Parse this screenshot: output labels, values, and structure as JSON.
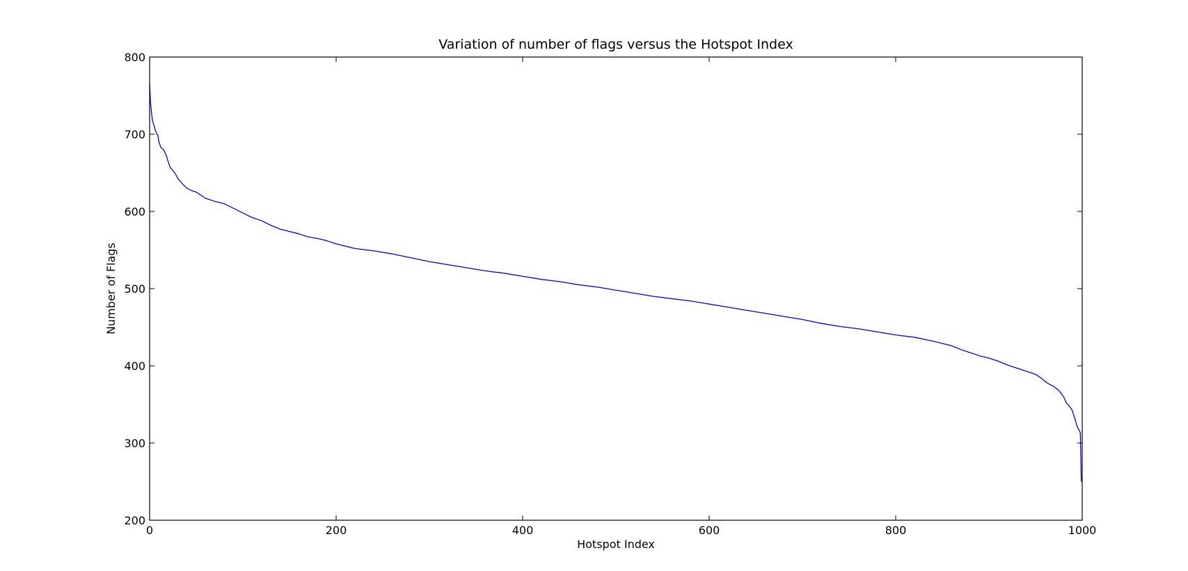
{
  "chart_data": {
    "type": "line",
    "title": "Variation of number of flags versus the Hotspot Index",
    "xlabel": "Hotspot Index",
    "ylabel": "Number of Flags",
    "xlim": [
      0,
      1000
    ],
    "ylim": [
      200,
      800
    ],
    "x_ticks": [
      0,
      200,
      400,
      600,
      800,
      1000
    ],
    "y_ticks": [
      200,
      300,
      400,
      500,
      600,
      700,
      800
    ],
    "grid": false,
    "series": [
      {
        "color": "#0000ff",
        "points": [
          [
            0,
            765
          ],
          [
            1,
            740
          ],
          [
            2,
            728
          ],
          [
            3,
            718
          ],
          [
            5,
            710
          ],
          [
            7,
            702
          ],
          [
            9,
            698
          ],
          [
            10,
            690
          ],
          [
            12,
            683
          ],
          [
            15,
            680
          ],
          [
            18,
            672
          ],
          [
            20,
            664
          ],
          [
            22,
            657
          ],
          [
            25,
            653
          ],
          [
            28,
            648
          ],
          [
            30,
            643
          ],
          [
            35,
            636
          ],
          [
            40,
            630
          ],
          [
            45,
            627
          ],
          [
            50,
            625
          ],
          [
            55,
            621
          ],
          [
            60,
            617
          ],
          [
            70,
            613
          ],
          [
            80,
            610
          ],
          [
            90,
            604
          ],
          [
            100,
            598
          ],
          [
            110,
            592
          ],
          [
            120,
            588
          ],
          [
            130,
            582
          ],
          [
            140,
            577
          ],
          [
            150,
            574
          ],
          [
            160,
            571
          ],
          [
            170,
            567
          ],
          [
            180,
            565
          ],
          [
            190,
            562
          ],
          [
            200,
            558
          ],
          [
            220,
            552
          ],
          [
            240,
            549
          ],
          [
            260,
            545
          ],
          [
            280,
            540
          ],
          [
            300,
            535
          ],
          [
            320,
            531
          ],
          [
            340,
            527
          ],
          [
            360,
            523
          ],
          [
            380,
            520
          ],
          [
            400,
            516
          ],
          [
            420,
            512
          ],
          [
            440,
            509
          ],
          [
            460,
            505
          ],
          [
            480,
            502
          ],
          [
            500,
            498
          ],
          [
            520,
            494
          ],
          [
            540,
            490
          ],
          [
            560,
            487
          ],
          [
            580,
            484
          ],
          [
            600,
            480
          ],
          [
            620,
            476
          ],
          [
            640,
            472
          ],
          [
            660,
            468
          ],
          [
            680,
            464
          ],
          [
            700,
            460
          ],
          [
            720,
            455
          ],
          [
            740,
            451
          ],
          [
            760,
            448
          ],
          [
            780,
            444
          ],
          [
            800,
            440
          ],
          [
            820,
            437
          ],
          [
            840,
            432
          ],
          [
            860,
            426
          ],
          [
            870,
            421
          ],
          [
            880,
            417
          ],
          [
            890,
            413
          ],
          [
            900,
            410
          ],
          [
            910,
            406
          ],
          [
            920,
            401
          ],
          [
            930,
            397
          ],
          [
            940,
            393
          ],
          [
            950,
            389
          ],
          [
            955,
            385
          ],
          [
            960,
            380
          ],
          [
            965,
            376
          ],
          [
            970,
            373
          ],
          [
            975,
            368
          ],
          [
            980,
            360
          ],
          [
            983,
            352
          ],
          [
            986,
            348
          ],
          [
            989,
            343
          ],
          [
            991,
            336
          ],
          [
            993,
            328
          ],
          [
            995,
            320
          ],
          [
            997,
            316
          ],
          [
            998,
            313
          ],
          [
            999,
            250
          ]
        ]
      }
    ]
  }
}
